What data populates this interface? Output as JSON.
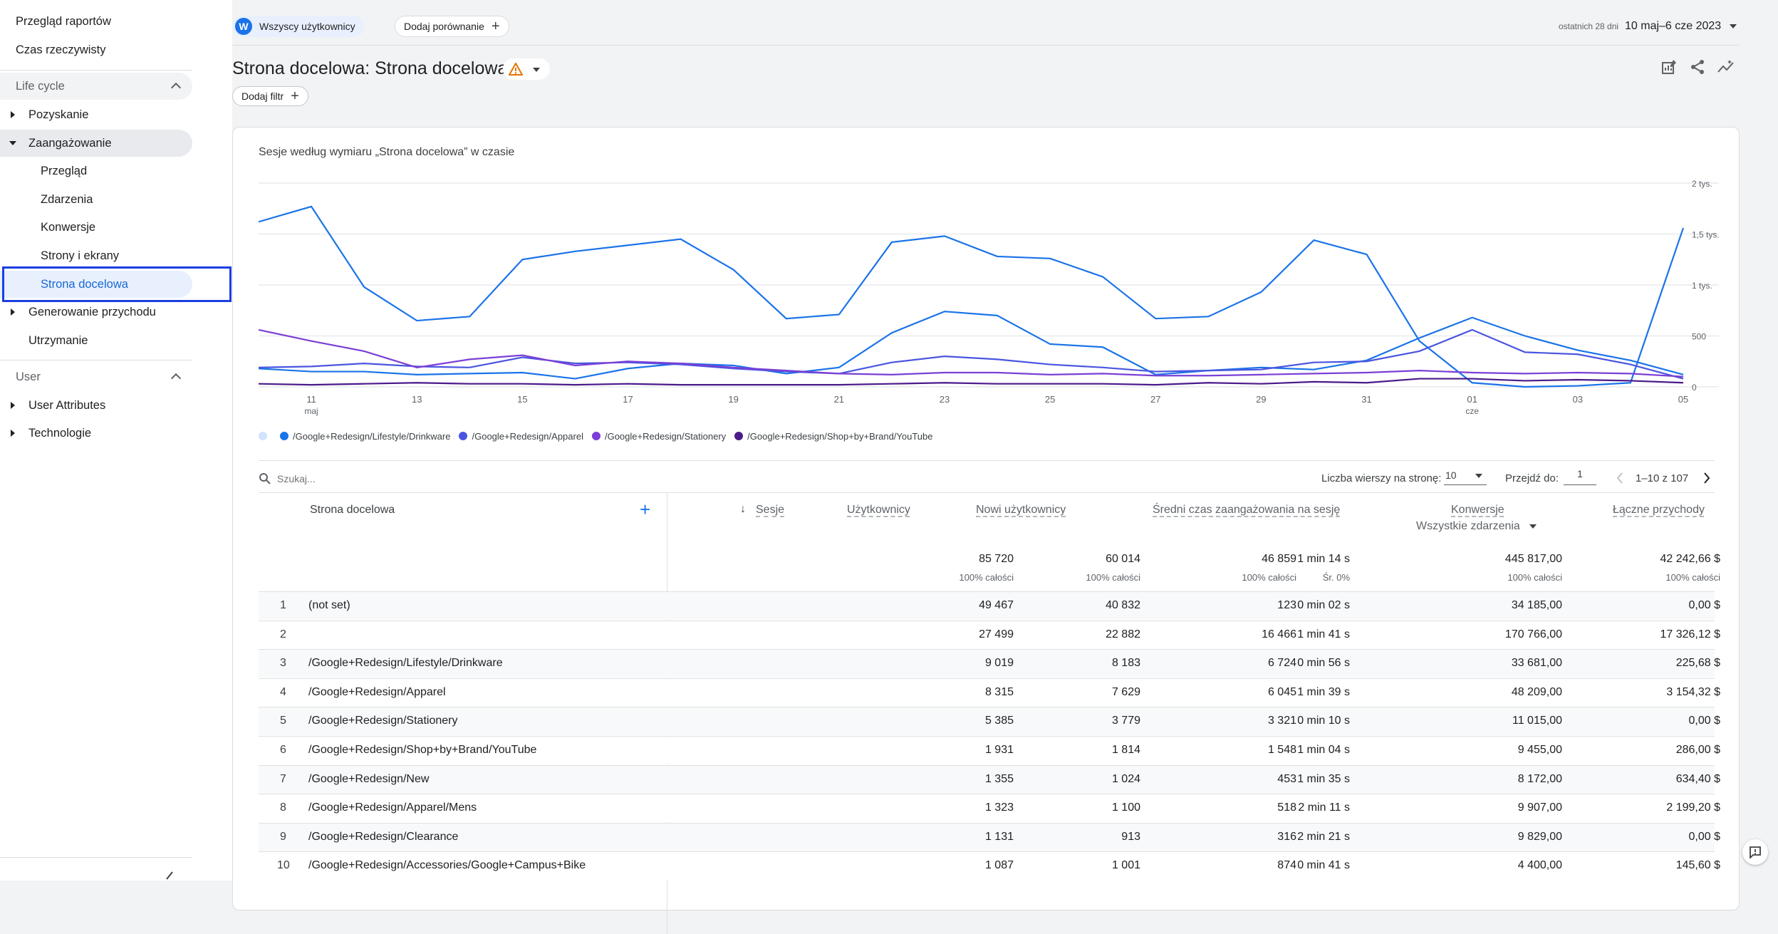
{
  "sidebar": {
    "top_items": [
      {
        "label": "Przegląd raportów"
      },
      {
        "label": "Czas rzeczywisty"
      }
    ],
    "section_lifecycle": "Life cycle",
    "lifecycle_items": [
      {
        "label": "Pozyskanie"
      },
      {
        "label": "Zaangażowanie"
      }
    ],
    "engagement_sub": [
      {
        "label": "Przegląd"
      },
      {
        "label": "Zdarzenia"
      },
      {
        "label": "Konwersje"
      },
      {
        "label": "Strony i ekrany"
      },
      {
        "label": "Strona docelowa"
      }
    ],
    "lifecycle_items_after": [
      {
        "label": "Generowanie przychodu"
      },
      {
        "label": "Utrzymanie"
      }
    ],
    "section_user": "User",
    "user_items": [
      {
        "label": "User Attributes"
      },
      {
        "label": "Technologie"
      }
    ]
  },
  "header": {
    "avatar_letter": "W",
    "segment_chip": "Wszyscy użytkownicy",
    "add_comparison": "Dodaj porównanie",
    "date_caption": "ostatnich 28 dni",
    "date_range": "10 maj–6 cze 2023"
  },
  "page": {
    "title": "Strona docelowa: Strona docelowa",
    "add_filter": "Dodaj filtr"
  },
  "chart": {
    "title": "Sesje według wymiaru „Strona docelowa” w czasie",
    "legend": [
      {
        "label": "",
        "color": "#d2e3fc"
      },
      {
        "label": "/Google+Redesign/Lifestyle/Drinkware",
        "color": "#1a73e8"
      },
      {
        "label": "/Google+Redesign/Apparel",
        "color": "#4a55e0"
      },
      {
        "label": "/Google+Redesign/Stationery",
        "color": "#7b3fd6"
      },
      {
        "label": "/Google+Redesign/Shop+by+Brand/YouTube",
        "color": "#4a1a8a"
      }
    ]
  },
  "chart_data": {
    "type": "line",
    "x_ticks": [
      {
        "label": "11",
        "sub": "maj"
      },
      {
        "label": "13",
        "sub": ""
      },
      {
        "label": "15",
        "sub": ""
      },
      {
        "label": "17",
        "sub": ""
      },
      {
        "label": "19",
        "sub": ""
      },
      {
        "label": "21",
        "sub": ""
      },
      {
        "label": "23",
        "sub": ""
      },
      {
        "label": "25",
        "sub": ""
      },
      {
        "label": "27",
        "sub": ""
      },
      {
        "label": "29",
        "sub": ""
      },
      {
        "label": "31",
        "sub": ""
      },
      {
        "label": "01",
        "sub": "cze"
      },
      {
        "label": "03",
        "sub": ""
      },
      {
        "label": "05",
        "sub": ""
      }
    ],
    "y_ticks": [
      "2 tys.",
      "1,5 tys.",
      "1 tys.",
      "500",
      "0"
    ],
    "y_tick_values": [
      2000,
      1500,
      1000,
      500,
      0
    ],
    "ylim": [
      0,
      2000
    ],
    "x": [
      "2023-05-10",
      "2023-05-11",
      "2023-05-12",
      "2023-05-13",
      "2023-05-14",
      "2023-05-15",
      "2023-05-16",
      "2023-05-17",
      "2023-05-18",
      "2023-05-19",
      "2023-05-20",
      "2023-05-21",
      "2023-05-22",
      "2023-05-23",
      "2023-05-24",
      "2023-05-25",
      "2023-05-26",
      "2023-05-27",
      "2023-05-28",
      "2023-05-29",
      "2023-05-30",
      "2023-05-31",
      "2023-06-01",
      "2023-06-02",
      "2023-06-03",
      "2023-06-04",
      "2023-06-05",
      "2023-06-06"
    ],
    "series": [
      {
        "name": "",
        "color": "#1a73e8",
        "values": [
          1620,
          1770,
          980,
          650,
          690,
          1250,
          1330,
          1390,
          1450,
          1150,
          670,
          710,
          1420,
          1480,
          1280,
          1260,
          1080,
          670,
          690,
          930,
          1440,
          1300,
          450,
          40,
          0,
          10,
          40,
          1560
        ]
      },
      {
        "name": "/Google+Redesign/Lifestyle/Drinkware",
        "color": "#1a73e8",
        "values": [
          180,
          150,
          150,
          120,
          130,
          140,
          80,
          180,
          230,
          210,
          130,
          190,
          530,
          740,
          700,
          420,
          390,
          120,
          160,
          190,
          170,
          260,
          480,
          680,
          500,
          360,
          260,
          120
        ]
      },
      {
        "name": "/Google+Redesign/Apparel",
        "color": "#4a55e0",
        "values": [
          190,
          200,
          230,
          200,
          190,
          290,
          230,
          240,
          220,
          180,
          150,
          130,
          240,
          300,
          270,
          220,
          190,
          150,
          160,
          170,
          240,
          250,
          350,
          560,
          340,
          320,
          220,
          80
        ]
      },
      {
        "name": "/Google+Redesign/Stationery",
        "color": "#7b3fd6",
        "values": [
          560,
          450,
          350,
          190,
          270,
          310,
          210,
          250,
          230,
          190,
          160,
          130,
          120,
          140,
          140,
          120,
          130,
          110,
          110,
          120,
          130,
          140,
          160,
          140,
          130,
          140,
          130,
          100
        ]
      },
      {
        "name": "/Google+Redesign/Shop+by+Brand/YouTube",
        "color": "#4a1a8a",
        "values": [
          30,
          20,
          30,
          40,
          30,
          30,
          20,
          30,
          20,
          20,
          20,
          20,
          30,
          40,
          30,
          30,
          30,
          20,
          40,
          30,
          50,
          40,
          80,
          80,
          60,
          70,
          60,
          40
        ]
      }
    ]
  },
  "table_controls": {
    "search_placeholder": "Szukaj...",
    "rows_per_page_label": "Liczba wierszy na stronę:",
    "rows_per_page_value": "10",
    "goto_label": "Przejdź do:",
    "goto_value": "1",
    "pagination": "1–10 z 107"
  },
  "table": {
    "dim_header": "Strona docelowa",
    "columns": [
      {
        "label": "Sesje",
        "total": "85 720",
        "sub": "100% całości"
      },
      {
        "label": "Użytkownicy",
        "total": "60 014",
        "sub": "100% całości"
      },
      {
        "label": "Nowi użytkownicy",
        "total": "46 859",
        "sub": "100% całości"
      },
      {
        "label": "Średni czas zaangażowania na sesję",
        "total": "1 min 14 s",
        "sub": "Śr. 0%"
      },
      {
        "label": "Konwersje",
        "total": "445 817,00",
        "sub": "100% całości",
        "dropdown": "Wszystkie zdarzenia"
      },
      {
        "label": "Łączne przychody",
        "total": "42 242,66 $",
        "sub": "100% całości"
      }
    ],
    "rows": [
      {
        "n": "1",
        "page": "(not set)",
        "v": [
          "49 467",
          "40 832",
          "123",
          "0 min 02 s",
          "34 185,00",
          "0,00 $"
        ]
      },
      {
        "n": "2",
        "page": "",
        "v": [
          "27 499",
          "22 882",
          "16 466",
          "1 min 41 s",
          "170 766,00",
          "17 326,12 $"
        ]
      },
      {
        "n": "3",
        "page": "/Google+Redesign/Lifestyle/Drinkware",
        "v": [
          "9 019",
          "8 183",
          "6 724",
          "0 min 56 s",
          "33 681,00",
          "225,68 $"
        ]
      },
      {
        "n": "4",
        "page": "/Google+Redesign/Apparel",
        "v": [
          "8 315",
          "7 629",
          "6 045",
          "1 min 39 s",
          "48 209,00",
          "3 154,32 $"
        ]
      },
      {
        "n": "5",
        "page": "/Google+Redesign/Stationery",
        "v": [
          "5 385",
          "3 779",
          "3 321",
          "0 min 10 s",
          "11 015,00",
          "0,00 $"
        ]
      },
      {
        "n": "6",
        "page": "/Google+Redesign/Shop+by+Brand/YouTube",
        "v": [
          "1 931",
          "1 814",
          "1 548",
          "1 min 04 s",
          "9 455,00",
          "286,00 $"
        ]
      },
      {
        "n": "7",
        "page": "/Google+Redesign/New",
        "v": [
          "1 355",
          "1 024",
          "453",
          "1 min 35 s",
          "8 172,00",
          "634,40 $"
        ]
      },
      {
        "n": "8",
        "page": "/Google+Redesign/Apparel/Mens",
        "v": [
          "1 323",
          "1 100",
          "518",
          "2 min 11 s",
          "9 907,00",
          "2 199,20 $"
        ]
      },
      {
        "n": "9",
        "page": "/Google+Redesign/Clearance",
        "v": [
          "1 131",
          "913",
          "316",
          "2 min 21 s",
          "9 829,00",
          "0,00 $"
        ]
      },
      {
        "n": "10",
        "page": "/Google+Redesign/Accessories/Google+Campus+Bike",
        "v": [
          "1 087",
          "1 001",
          "874",
          "0 min 41 s",
          "4 400,00",
          "145,60 $"
        ]
      }
    ]
  }
}
